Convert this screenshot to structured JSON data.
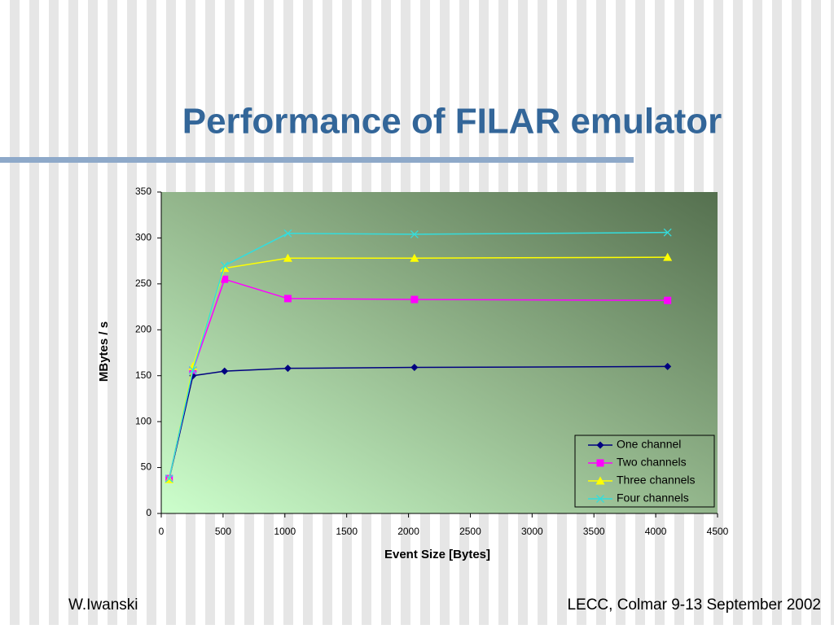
{
  "title": "Performance of FILAR emulator",
  "footer": {
    "left": "W.Iwanski",
    "right": "LECC, Colmar 9-13 September 2002"
  },
  "chart_data": {
    "type": "line",
    "x_label": "Event Size [Bytes]",
    "y_label": "MBytes / s",
    "x": [
      64,
      256,
      512,
      1024,
      2048,
      4096
    ],
    "series": [
      {
        "name": "One channel",
        "color": "#000080",
        "marker": "diamond",
        "values": [
          37,
          150,
          155,
          158,
          159,
          160
        ]
      },
      {
        "name": "Two channels",
        "color": "#ff00ff",
        "marker": "square",
        "values": [
          38,
          156,
          255,
          234,
          233,
          232
        ]
      },
      {
        "name": "Three channels",
        "color": "#ffff00",
        "marker": "triangle",
        "values": [
          37,
          160,
          267,
          278,
          278,
          279
        ]
      },
      {
        "name": "Four channels",
        "color": "#33dddd",
        "marker": "x",
        "values": [
          38,
          156,
          270,
          305,
          304,
          306
        ]
      }
    ],
    "xlim": [
      0,
      4500
    ],
    "xticks": [
      0,
      500,
      1000,
      1500,
      2000,
      2500,
      3000,
      3500,
      4000,
      4500
    ],
    "ylim": [
      0,
      350
    ],
    "yticks": [
      0,
      50,
      100,
      150,
      200,
      250,
      300,
      350
    ],
    "legend": "lower right"
  }
}
